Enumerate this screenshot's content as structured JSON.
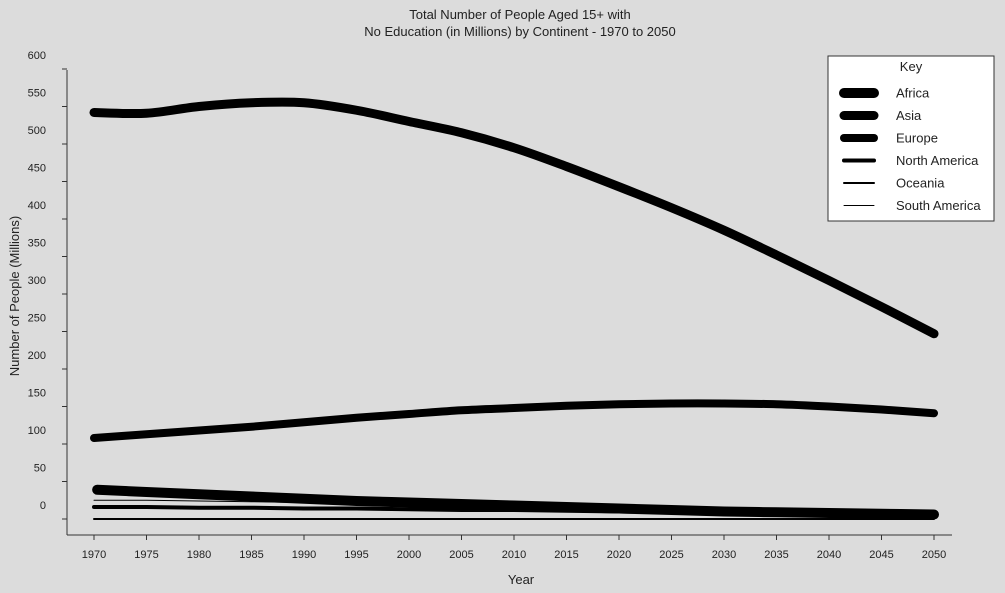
{
  "chart_data": {
    "type": "line",
    "title": "Total Number of People Aged 15+ with No Education (in Millions) by Continent - 1970 to 2050",
    "title_lines": [
      "Total Number of People Aged 15+ with",
      "No Education (in Millions) by Continent - 1970 to 2050"
    ],
    "xlabel": "Year",
    "ylabel": "Number of People (Millions)",
    "x": [
      1970,
      1975,
      1980,
      1985,
      1990,
      1995,
      2000,
      2005,
      2010,
      2015,
      2020,
      2025,
      2030,
      2035,
      2040,
      2045,
      2050
    ],
    "ylim": [
      0,
      600
    ],
    "yticks": [
      0,
      50,
      100,
      150,
      200,
      250,
      300,
      350,
      400,
      450,
      500,
      550,
      600
    ],
    "grid": false,
    "legend": {
      "title": "Key",
      "placement": "top-right"
    },
    "series": [
      {
        "name": "Africa",
        "color": "#000000",
        "values": [
          39,
          36,
          33,
          30,
          27,
          24,
          22,
          20,
          18,
          16,
          14,
          12,
          10,
          9,
          8,
          7,
          6
        ]
      },
      {
        "name": "Asia",
        "color": "#000000",
        "values": [
          542,
          541,
          550,
          555,
          555,
          545,
          530,
          515,
          495,
          470,
          443,
          415,
          385,
          352,
          318,
          283,
          247
        ]
      },
      {
        "name": "Europe",
        "color": "#000000",
        "values": [
          108,
          113,
          118,
          123,
          129,
          135,
          140,
          145,
          148,
          151,
          153,
          154,
          154,
          153,
          150,
          146,
          141
        ]
      },
      {
        "name": "North America",
        "color": "#000000",
        "values": [
          16,
          16,
          15,
          15,
          14,
          14,
          13,
          12,
          12,
          11,
          10,
          9,
          8,
          7,
          6,
          5,
          4
        ]
      },
      {
        "name": "Oceania",
        "color": "#000000",
        "values": [
          0,
          0,
          0,
          0,
          0,
          0,
          0,
          0,
          0,
          0,
          0,
          0,
          0,
          0,
          0,
          0,
          0
        ]
      },
      {
        "name": "South America",
        "color": "#000000",
        "values": [
          25,
          25,
          24,
          23,
          22,
          21,
          20,
          19,
          18,
          17,
          15,
          13,
          11,
          9,
          7,
          5,
          3
        ]
      }
    ]
  }
}
